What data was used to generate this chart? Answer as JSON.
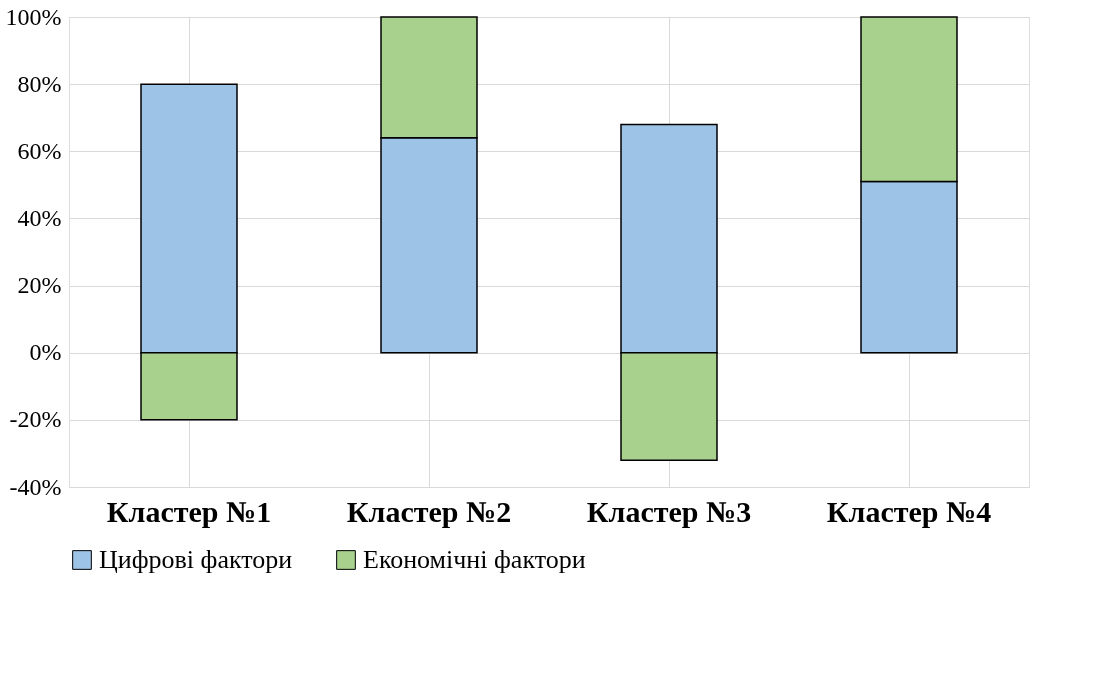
{
  "chart_data": {
    "type": "bar",
    "stacked": true,
    "categories": [
      "Кластер №1",
      "Кластер №2",
      "Кластер №3",
      "Кластер №4"
    ],
    "series": [
      {
        "name": "Цифрові фактори",
        "color": "#9dc3e6",
        "values": [
          80,
          64,
          68,
          51
        ]
      },
      {
        "name": "Економічні фактори",
        "color": "#a9d18e",
        "values": [
          -20,
          36,
          -32,
          49
        ]
      }
    ],
    "ylim": [
      -40,
      100
    ],
    "yticks": [
      {
        "value": -40,
        "label": "-40%"
      },
      {
        "value": -20,
        "label": "-20%"
      },
      {
        "value": 0,
        "label": "0%"
      },
      {
        "value": 20,
        "label": "20%"
      },
      {
        "value": 40,
        "label": "40%"
      },
      {
        "value": 60,
        "label": "60%"
      },
      {
        "value": 80,
        "label": "80%"
      },
      {
        "value": 100,
        "label": "100%"
      }
    ],
    "grid": true,
    "legend": "bottom"
  }
}
